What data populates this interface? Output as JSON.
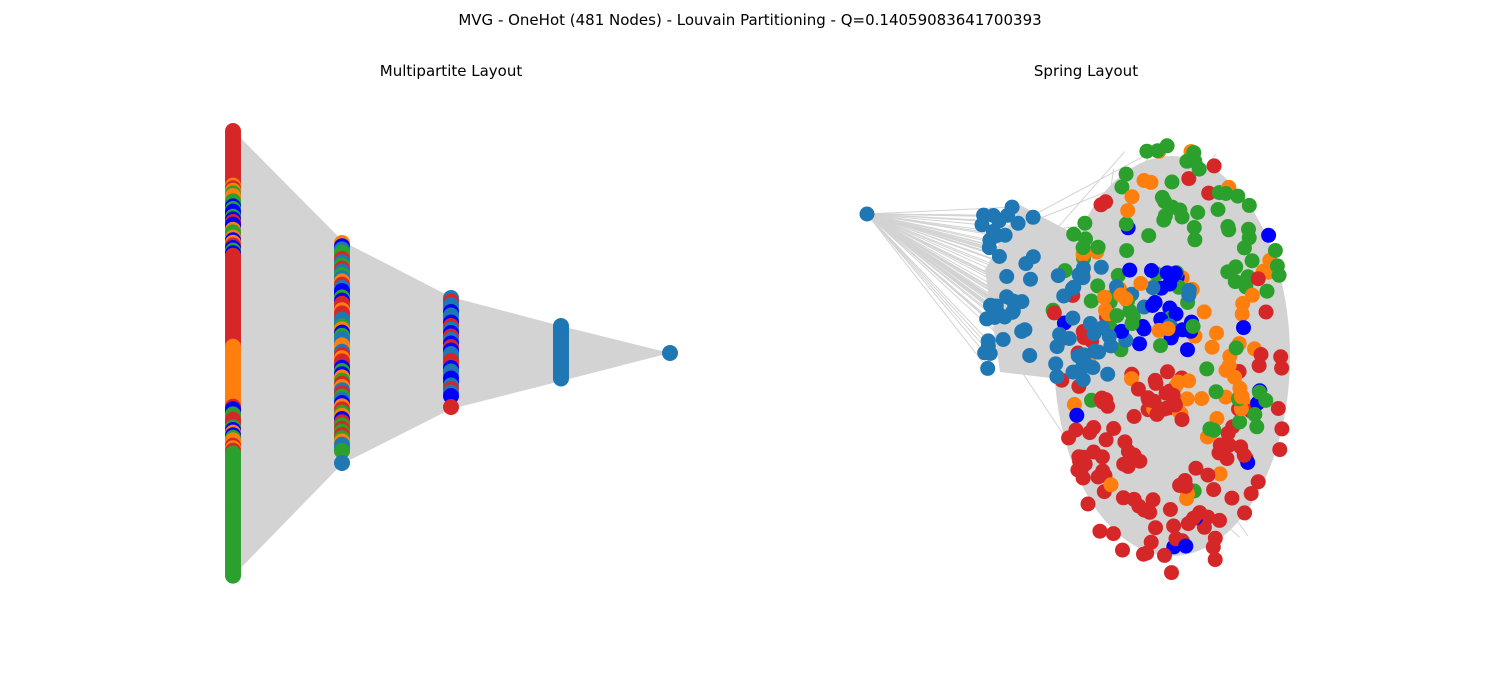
{
  "figure": {
    "title": "MVG - OneHot (481 Nodes) - Louvain Partitioning - Q=0.14059083641700393",
    "panels": [
      {
        "title": "Multipartite Layout",
        "layout": "multipartite"
      },
      {
        "title": "Spring Layout",
        "layout": "spring"
      }
    ]
  },
  "graph": {
    "node_count": 481,
    "modularity": 0.14059083641700393,
    "partition_method": "Louvain",
    "edge_color": "#d3d3d3",
    "community_colors": [
      "#d62728",
      "#ff7f0e",
      "#2ca02c",
      "#0000ff",
      "#1f77b4"
    ]
  }
}
